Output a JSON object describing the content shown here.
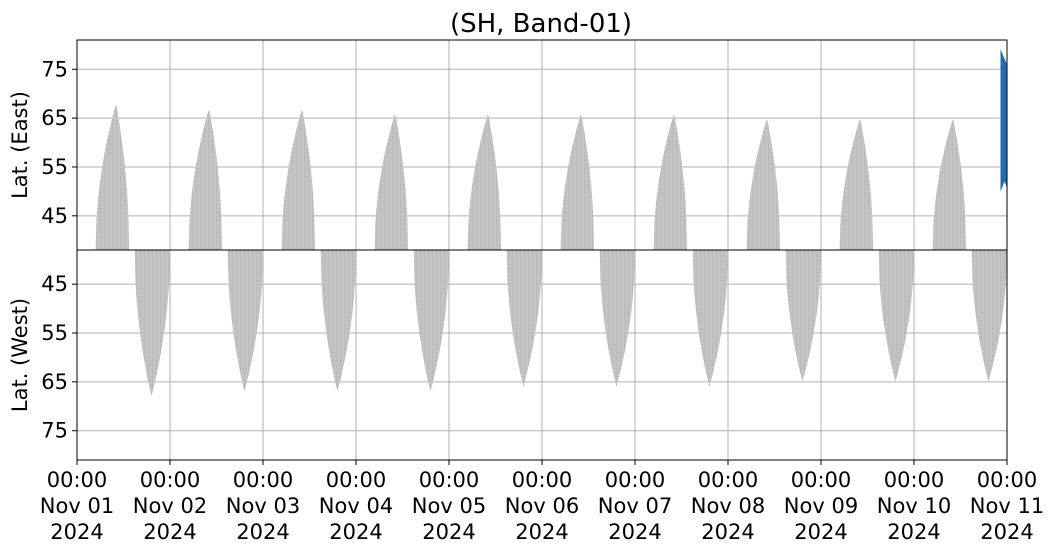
{
  "chart_data": [
    {
      "type": "heatmap",
      "panel": "east",
      "title": "(SH, Band-01)",
      "ylabel": "Lat. (East)",
      "ylim": [
        81,
        38
      ],
      "yticks": [
        "45",
        "55",
        "65",
        "75"
      ],
      "grid": true,
      "x_range": [
        "2024-11-01 00:00",
        "2024-11-11 00:00"
      ],
      "coverage": {
        "color": "#c0c0c0",
        "passes": [
          {
            "start_day": 0.2,
            "peak_day": 0.42,
            "end_day": 0.56,
            "lat_edge": 38,
            "lat_peak": 68
          },
          {
            "start_day": 1.2,
            "peak_day": 1.42,
            "end_day": 1.56,
            "lat_edge": 38,
            "lat_peak": 67
          },
          {
            "start_day": 2.2,
            "peak_day": 2.42,
            "end_day": 2.56,
            "lat_edge": 38,
            "lat_peak": 67
          },
          {
            "start_day": 3.2,
            "peak_day": 3.42,
            "end_day": 3.56,
            "lat_edge": 38,
            "lat_peak": 66
          },
          {
            "start_day": 4.2,
            "peak_day": 4.42,
            "end_day": 4.56,
            "lat_edge": 38,
            "lat_peak": 66
          },
          {
            "start_day": 5.2,
            "peak_day": 5.42,
            "end_day": 5.56,
            "lat_edge": 38,
            "lat_peak": 66
          },
          {
            "start_day": 6.2,
            "peak_day": 6.42,
            "end_day": 6.56,
            "lat_edge": 38,
            "lat_peak": 66
          },
          {
            "start_day": 7.2,
            "peak_day": 7.42,
            "end_day": 7.56,
            "lat_edge": 38,
            "lat_peak": 65
          },
          {
            "start_day": 8.2,
            "peak_day": 8.42,
            "end_day": 8.56,
            "lat_edge": 38,
            "lat_peak": 65
          },
          {
            "start_day": 9.2,
            "peak_day": 9.42,
            "end_day": 9.56,
            "lat_edge": 38,
            "lat_peak": 65
          }
        ]
      },
      "highlight": {
        "color": "#1f6eb5",
        "start_day": 9.93,
        "end_day": 10.0,
        "lat_min": 52,
        "lat_max": 75
      }
    },
    {
      "type": "heatmap",
      "panel": "west",
      "xlabel": "",
      "ylabel": "Lat. (West)",
      "ylim": [
        38,
        81
      ],
      "yticks": [
        "75",
        "65",
        "55",
        "45"
      ],
      "grid": true,
      "x_range": [
        "2024-11-01 00:00",
        "2024-11-11 00:00"
      ],
      "xticks": [
        [
          "00:00",
          "Nov 01",
          "2024"
        ],
        [
          "00:00",
          "Nov 02",
          "2024"
        ],
        [
          "00:00",
          "Nov 03",
          "2024"
        ],
        [
          "00:00",
          "Nov 04",
          "2024"
        ],
        [
          "00:00",
          "Nov 05",
          "2024"
        ],
        [
          "00:00",
          "Nov 06",
          "2024"
        ],
        [
          "00:00",
          "Nov 07",
          "2024"
        ],
        [
          "00:00",
          "Nov 08",
          "2024"
        ],
        [
          "00:00",
          "Nov 09",
          "2024"
        ],
        [
          "00:00",
          "Nov 10",
          "2024"
        ],
        [
          "00:00",
          "Nov 11",
          "2024"
        ]
      ],
      "coverage": {
        "color": "#c0c0c0",
        "passes": [
          {
            "start_day": 0.62,
            "peak_day": 0.8,
            "end_day": 1.0,
            "lat_edge": 38,
            "lat_peak": 68
          },
          {
            "start_day": 1.62,
            "peak_day": 1.8,
            "end_day": 2.0,
            "lat_edge": 38,
            "lat_peak": 67
          },
          {
            "start_day": 2.62,
            "peak_day": 2.8,
            "end_day": 3.0,
            "lat_edge": 38,
            "lat_peak": 67
          },
          {
            "start_day": 3.62,
            "peak_day": 3.8,
            "end_day": 4.0,
            "lat_edge": 38,
            "lat_peak": 67
          },
          {
            "start_day": 4.62,
            "peak_day": 4.8,
            "end_day": 5.0,
            "lat_edge": 38,
            "lat_peak": 66
          },
          {
            "start_day": 5.62,
            "peak_day": 5.8,
            "end_day": 6.0,
            "lat_edge": 38,
            "lat_peak": 66
          },
          {
            "start_day": 6.62,
            "peak_day": 6.8,
            "end_day": 7.0,
            "lat_edge": 38,
            "lat_peak": 66
          },
          {
            "start_day": 7.62,
            "peak_day": 7.8,
            "end_day": 8.0,
            "lat_edge": 38,
            "lat_peak": 65
          },
          {
            "start_day": 8.62,
            "peak_day": 8.8,
            "end_day": 9.0,
            "lat_edge": 38,
            "lat_peak": 65
          },
          {
            "start_day": 9.62,
            "peak_day": 9.8,
            "end_day": 10.0,
            "lat_edge": 38,
            "lat_peak": 65
          }
        ]
      }
    }
  ]
}
